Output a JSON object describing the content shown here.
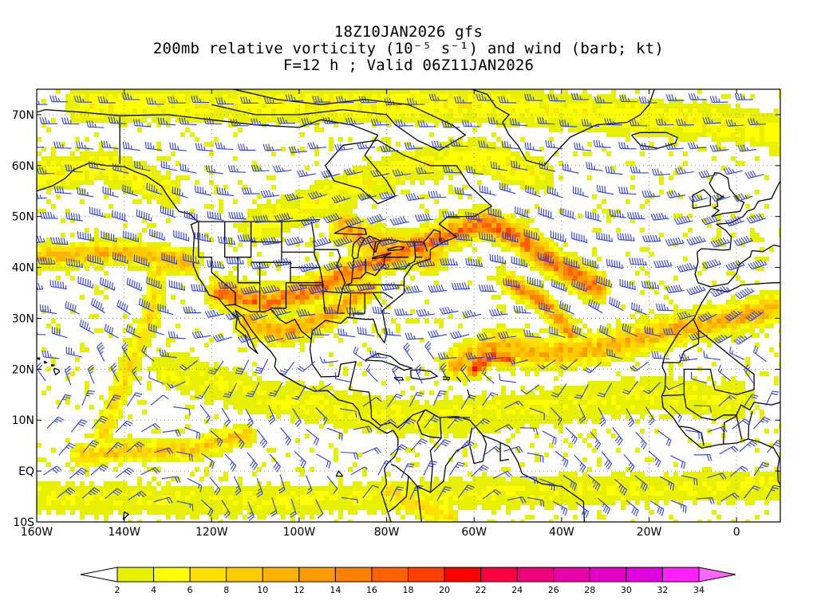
{
  "title": {
    "line1": "18Z10JAN2026 gfs",
    "line2": "200mb relative vorticity (10⁻⁵ s⁻¹) and wind (barb; kt)",
    "line3": "F=12 h ; Valid 06Z11JAN2026"
  },
  "map": {
    "lon_range": [
      -160,
      10
    ],
    "lat_range": [
      -10,
      75
    ],
    "lat_ticks": [
      {
        "value": 70,
        "label": "70N"
      },
      {
        "value": 60,
        "label": "60N"
      },
      {
        "value": 50,
        "label": "50N"
      },
      {
        "value": 40,
        "label": "40N"
      },
      {
        "value": 30,
        "label": "30N"
      },
      {
        "value": 20,
        "label": "20N"
      },
      {
        "value": 10,
        "label": "10N"
      },
      {
        "value": 0,
        "label": "EQ"
      },
      {
        "value": -10,
        "label": "10S"
      }
    ],
    "lon_ticks": [
      {
        "value": -160,
        "label": "160W"
      },
      {
        "value": -140,
        "label": "140W"
      },
      {
        "value": -120,
        "label": "120W"
      },
      {
        "value": -100,
        "label": "100W"
      },
      {
        "value": -80,
        "label": "80W"
      },
      {
        "value": -60,
        "label": "60W"
      },
      {
        "value": -40,
        "label": "40W"
      },
      {
        "value": -20,
        "label": "20W"
      },
      {
        "value": 0,
        "label": "0"
      }
    ],
    "colors": {
      "barb": "#2b3de0",
      "coast": "#000000",
      "grid": "#888888"
    }
  },
  "colorbar": {
    "levels": [
      2,
      4,
      6,
      8,
      10,
      12,
      14,
      16,
      18,
      20,
      22,
      24,
      26,
      28,
      30,
      32,
      34
    ],
    "colors": [
      "#ffffff",
      "#e6f000",
      "#ffff00",
      "#ffe000",
      "#ffcc00",
      "#ffb300",
      "#ff9a00",
      "#ff8000",
      "#ff6000",
      "#ff4000",
      "#ff0000",
      "#ff0040",
      "#f0007a",
      "#e800a8",
      "#e400c8",
      "#e000e0",
      "#ff20ff",
      "#ff66ff"
    ]
  }
}
